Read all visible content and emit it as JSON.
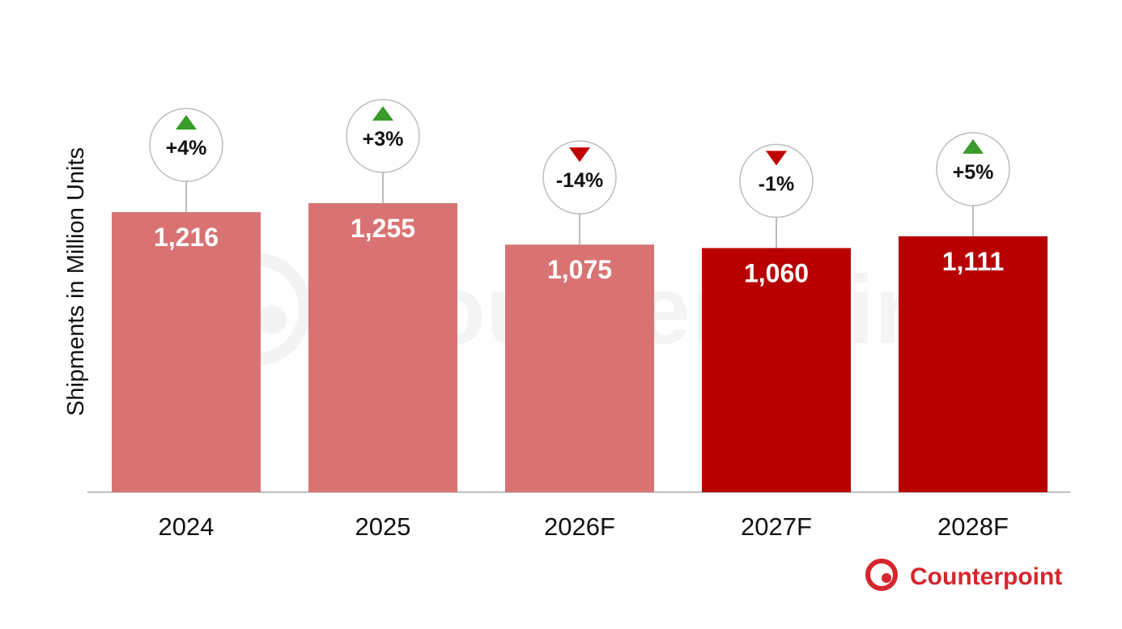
{
  "chart_data": {
    "type": "bar",
    "title": "",
    "ylabel": "Shipments in Million Units",
    "xlabel": "",
    "categories": [
      "2024",
      "2025",
      "2026F",
      "2027F",
      "2028F"
    ],
    "values": [
      1216,
      1255,
      1075,
      1060,
      1111
    ],
    "value_labels": [
      "1,216",
      "1,255",
      "1,075",
      "1,060",
      "1,111"
    ],
    "growth_labels": [
      "+4%",
      "+3%",
      "-14%",
      "-1%",
      "+5%"
    ],
    "growth_direction": [
      "up",
      "up",
      "down",
      "down",
      "up"
    ],
    "bar_colors": [
      "#d97373",
      "#d97373",
      "#d97373",
      "#b80000",
      "#b80000"
    ],
    "colors": {
      "up_arrow": "#3a9a2a",
      "down_arrow": "#c00000",
      "axis": "#bfbfbf",
      "connector": "#a6a6a6"
    },
    "ylim": [
      0,
      1320
    ],
    "grid": false,
    "legend": "none"
  },
  "watermark": {
    "text": "Counterpoint"
  },
  "logo": {
    "text": "Counterpoint",
    "color": "#d6262d",
    "icon": "counterpoint-logo-icon"
  }
}
